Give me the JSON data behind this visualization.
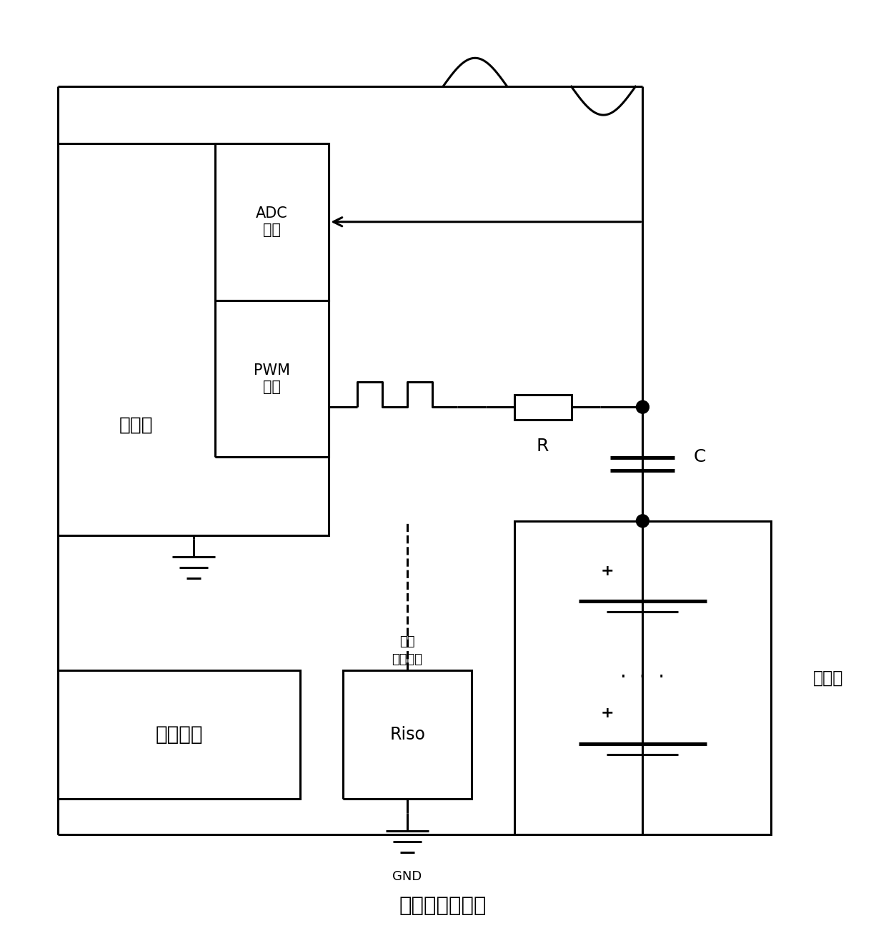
{
  "title": "高压电母线回路",
  "controller_label": "控制器",
  "adc_label": "ADC\n输入",
  "pwm_label": "PWM\n输出",
  "R_label": "R",
  "C_label": "C",
  "battery_label": "电池组",
  "load_label": "等效负载",
  "riso_label1": "等效",
  "riso_label2": "绝缘阻抗",
  "riso_label3": "Riso",
  "gnd_label": "GND",
  "lw": 2.2
}
